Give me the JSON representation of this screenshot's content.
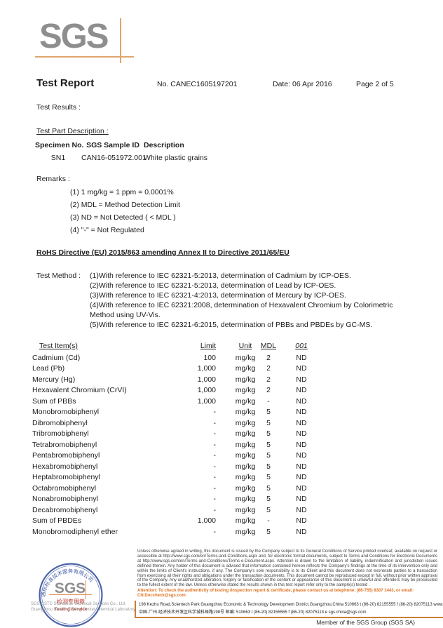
{
  "page": {
    "header": {
      "logo": "SGS",
      "title": "Test Report",
      "report_no": "No. CANEC1605197201",
      "date": "Date: 06 Apr 2016",
      "page_info": "Page 2 of 5"
    },
    "test_results_label": "Test Results :",
    "test_part_description_label": "Test Part Description :",
    "specimen_table": {
      "headers": [
        "Specimen No.",
        "SGS Sample ID",
        "Description"
      ],
      "rows": [
        [
          "SN1",
          "CAN16-051972.001",
          "White plastic grains"
        ]
      ]
    },
    "remarks_label": "Remarks :",
    "remarks": [
      "(1) 1 mg/kg = 1 ppm = 0.0001%",
      "(2) MDL = Method Detection Limit",
      "(3) ND = Not Detected ( < MDL )",
      "(4) \"-\" = Not Regulated"
    ],
    "rohs_heading": "RoHS Directive (EU) 2015/863 amending Annex II to Directive 2011/65/EU",
    "test_method_label": "Test Method :",
    "test_methods": [
      "(1)With reference to IEC 62321-5:2013, determination of Cadmium by ICP-OES.",
      "(2)With reference to IEC 62321-5:2013, determination of Lead by ICP-OES.",
      "(3)With reference to IEC 62321-4:2013, determination of Mercury by ICP-OES.",
      "(4)With reference to IEC 62321:2008, determination of Hexavalent Chromium by Colorimetric Method using UV-Vis.",
      "(5)With reference to IEC 62321-6:2015, determination of PBBs and PBDEs by GC-MS."
    ],
    "results_table": {
      "headers": {
        "item": "Test Item(s)",
        "limit": "Limit",
        "unit": "Unit",
        "mdl": "MDL",
        "sample": "001"
      },
      "rows": [
        {
          "item": "Cadmium (Cd)",
          "limit": "100",
          "unit": "mg/kg",
          "mdl": "2",
          "result": "ND"
        },
        {
          "item": "Lead (Pb)",
          "limit": "1,000",
          "unit": "mg/kg",
          "mdl": "2",
          "result": "ND"
        },
        {
          "item": "Mercury (Hg)",
          "limit": "1,000",
          "unit": "mg/kg",
          "mdl": "2",
          "result": "ND"
        },
        {
          "item": "Hexavalent Chromium (CrVI)",
          "limit": "1,000",
          "unit": "mg/kg",
          "mdl": "2",
          "result": "ND"
        },
        {
          "item": "Sum of PBBs",
          "limit": "1,000",
          "unit": "mg/kg",
          "mdl": "-",
          "result": "ND"
        },
        {
          "item": "Monobromobiphenyl",
          "limit": "-",
          "unit": "mg/kg",
          "mdl": "5",
          "result": "ND"
        },
        {
          "item": "Dibromobiphenyl",
          "limit": "-",
          "unit": "mg/kg",
          "mdl": "5",
          "result": "ND"
        },
        {
          "item": "Tribromobiphenyl",
          "limit": "-",
          "unit": "mg/kg",
          "mdl": "5",
          "result": "ND"
        },
        {
          "item": "Tetrabromobiphenyl",
          "limit": "-",
          "unit": "mg/kg",
          "mdl": "5",
          "result": "ND"
        },
        {
          "item": "Pentabromobiphenyl",
          "limit": "-",
          "unit": "mg/kg",
          "mdl": "5",
          "result": "ND"
        },
        {
          "item": "Hexabromobiphenyl",
          "limit": "-",
          "unit": "mg/kg",
          "mdl": "5",
          "result": "ND"
        },
        {
          "item": "Heptabromobiphenyl",
          "limit": "-",
          "unit": "mg/kg",
          "mdl": "5",
          "result": "ND"
        },
        {
          "item": "Octabromobiphenyl",
          "limit": "-",
          "unit": "mg/kg",
          "mdl": "5",
          "result": "ND"
        },
        {
          "item": "Nonabromobiphenyl",
          "limit": "-",
          "unit": "mg/kg",
          "mdl": "5",
          "result": "ND"
        },
        {
          "item": "Decabromobiphenyl",
          "limit": "-",
          "unit": "mg/kg",
          "mdl": "5",
          "result": "ND"
        },
        {
          "item": "Sum of PBDEs",
          "limit": "1,000",
          "unit": "mg/kg",
          "mdl": "-",
          "result": "ND"
        },
        {
          "item": "Monobromodiphenyl ether",
          "limit": "-",
          "unit": "mg/kg",
          "mdl": "5",
          "result": "ND"
        }
      ]
    },
    "footer": {
      "disclaimer": "Unless otherwise agreed in writing, this document is issued by the Company subject to its General Conditions of Service printed overleaf, available on request or accessible at http://www.sgs.com/en/Terms-and-Conditions.aspx and, for electronic format documents, subject to Terms and Conditions for Electronic Documents at http://www.sgs.com/en/Terms-and-Conditions/Terms-e-Document.aspx. Attention is drawn to the limitation of liability, indemnification and jurisdiction issues defined therein. Any holder of this document is advised that information contained hereon reflects the Company's findings at the time of its intervention only and within the limits of Client's instructions, if any. The Company's sole responsibility is to its Client and this document does not exonerate parties to a transaction from exercising all their rights and obligations under the transaction documents. This document cannot be reproduced except in full, without prior written approval of the Company. Any unauthorized alteration, forgery or falsification of the content or appearance of this document is unlawful and offenders may be prosecuted to the fullest extent of the law. Unless otherwise stated the results shown in this test report refer only to the sample(s) tested .",
      "attention": "Attention: To check the authenticity of testing /inspection report & certificate, please contact us at telephone: (86-755) 8307 1443, or email: CN.Doccheck@sgs.com",
      "company_line1": "SGS-CSTC Standards Technical Services Co., Ltd.",
      "company_line2": "Guangzhou Branch Testing Center Chemical Laboratory.",
      "address_en": "198 Kezhu Road,Scientech Park Guangzhou Economic & Technology Development District,Guangzhou,China  510663   t (86-20) 82155555   f (86-20) 82075113   www.sgsgroup.com.cn",
      "address_cn": "中国·广州·经济技术开发区科学城科珠路198号   邮编: 510663   t (86-20) 82155555   f (86-20) 82075113   e  sgs.china@sgs.com",
      "member_line": "Member of the SGS Group (SGS SA)",
      "stamp": {
        "ring_text": "通标标准技术服务有限公司",
        "logo": "SGS",
        "seal_text": "检测专用章",
        "service_text": "Testing Service"
      }
    },
    "colors": {
      "logo_gray": "#8e8e8e",
      "crosshair_orange": "#dfa56e",
      "attention_orange": "#e2711d",
      "footer_line_orange": "#c87d33",
      "stamp_blue": "#4a63a8",
      "stamp_red": "#c13b30"
    }
  }
}
